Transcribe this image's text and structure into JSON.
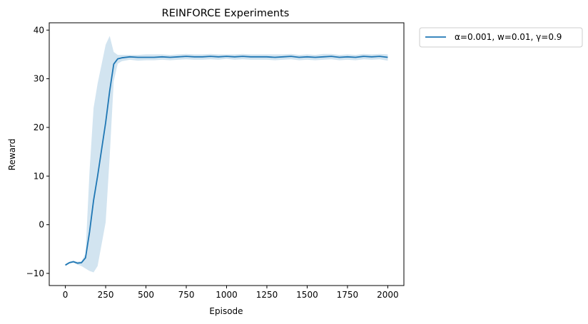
{
  "chart_data": {
    "type": "line",
    "title": "REINFORCE Experiments",
    "xlabel": "Episode",
    "ylabel": "Reward",
    "xlim": [
      -100,
      2100
    ],
    "ylim": [
      -12.5,
      41.5
    ],
    "xticks": [
      0,
      250,
      500,
      750,
      1000,
      1250,
      1500,
      1750,
      2000
    ],
    "yticks": [
      -10,
      0,
      10,
      20,
      30,
      40
    ],
    "xtick_labels": [
      "0",
      "250",
      "500",
      "750",
      "1000",
      "1250",
      "1500",
      "1750",
      "2000"
    ],
    "ytick_labels": [
      "−10",
      "0",
      "10",
      "20",
      "30",
      "40"
    ],
    "grid": false,
    "legend_position": "outside-top-right",
    "series": [
      {
        "name": "α=0.001, w=0.01, γ=0.9",
        "color": "#1f77b4",
        "band_color": "#1f77b4",
        "band_opacity": 0.2,
        "x": [
          0,
          25,
          50,
          75,
          100,
          125,
          150,
          175,
          200,
          225,
          250,
          275,
          300,
          325,
          350,
          400,
          450,
          500,
          550,
          600,
          650,
          700,
          750,
          800,
          850,
          900,
          950,
          1000,
          1050,
          1100,
          1150,
          1200,
          1250,
          1300,
          1350,
          1400,
          1450,
          1500,
          1550,
          1600,
          1650,
          1700,
          1750,
          1800,
          1850,
          1900,
          1950,
          2000
        ],
        "mean": [
          -8.3,
          -7.8,
          -7.6,
          -7.9,
          -7.8,
          -6.8,
          -1.5,
          5.0,
          10.0,
          15.5,
          21.0,
          27.5,
          33.0,
          34.1,
          34.3,
          34.5,
          34.4,
          34.4,
          34.4,
          34.5,
          34.4,
          34.5,
          34.6,
          34.5,
          34.5,
          34.6,
          34.5,
          34.6,
          34.5,
          34.6,
          34.5,
          34.5,
          34.5,
          34.4,
          34.5,
          34.6,
          34.4,
          34.5,
          34.4,
          34.5,
          34.6,
          34.4,
          34.5,
          34.4,
          34.6,
          34.5,
          34.6,
          34.4
        ],
        "upper": [
          -8.1,
          -7.6,
          -7.4,
          -7.6,
          -7.5,
          -6.0,
          11.0,
          24.0,
          29.0,
          33.0,
          37.0,
          38.8,
          35.5,
          34.9,
          34.9,
          34.9,
          34.9,
          35.0,
          35.0,
          35.0,
          34.9,
          35.0,
          35.1,
          35.0,
          35.0,
          35.1,
          35.0,
          35.0,
          35.0,
          35.1,
          35.0,
          35.0,
          35.0,
          35.0,
          35.0,
          35.1,
          34.9,
          35.0,
          34.9,
          35.1,
          35.1,
          34.9,
          35.0,
          34.9,
          35.1,
          35.0,
          35.1,
          35.0
        ],
        "lower": [
          -8.5,
          -8.0,
          -7.8,
          -8.2,
          -8.5,
          -9.0,
          -9.5,
          -9.8,
          -8.5,
          -4.0,
          0.5,
          14.0,
          29.5,
          33.1,
          33.6,
          33.9,
          33.7,
          33.8,
          33.8,
          33.9,
          33.8,
          33.9,
          34.0,
          33.9,
          33.9,
          34.0,
          33.9,
          34.1,
          33.9,
          34.0,
          33.9,
          33.9,
          33.9,
          33.8,
          33.9,
          34.0,
          33.8,
          33.9,
          33.8,
          33.9,
          34.0,
          33.8,
          33.9,
          33.8,
          34.0,
          33.9,
          34.0,
          33.7
        ]
      }
    ]
  }
}
